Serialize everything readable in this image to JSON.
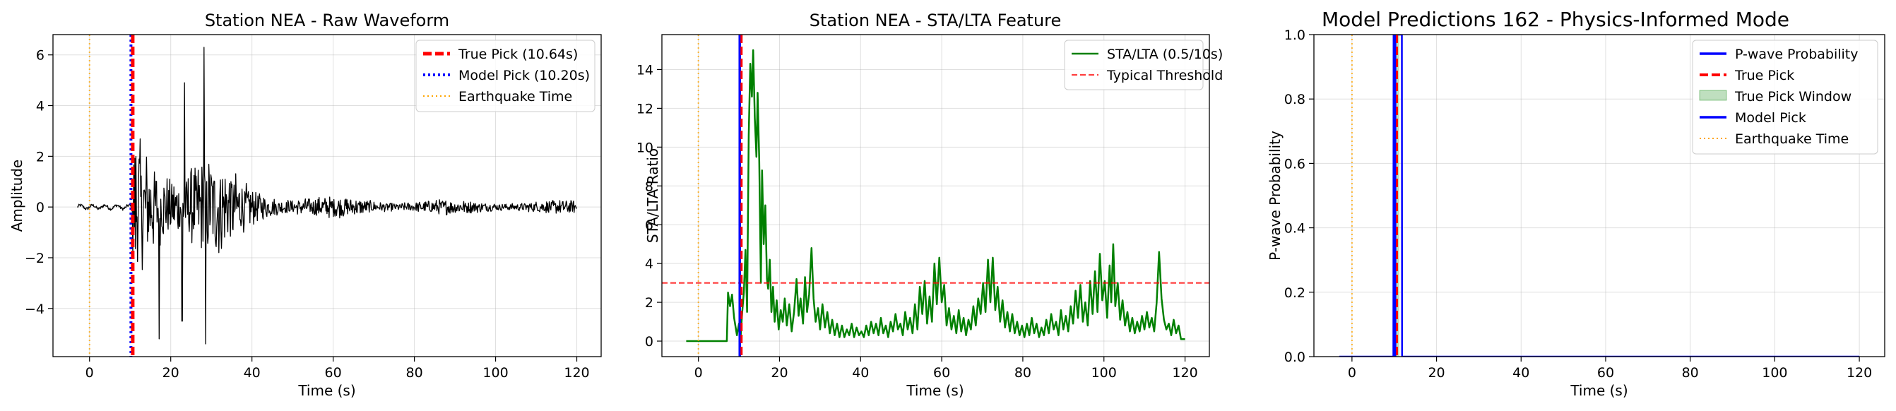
{
  "chart_data": [
    {
      "type": "line",
      "title": "Station NEA - Raw Waveform",
      "xlabel": "Time (s)",
      "ylabel": "Amplitude",
      "xlim": [
        -9,
        126
      ],
      "ylim": [
        -5.9,
        6.8
      ],
      "xticks": [
        0,
        20,
        40,
        60,
        80,
        100,
        120
      ],
      "yticks": [
        -4,
        -2,
        0,
        2,
        4,
        6
      ],
      "xtick_labels": [
        "0",
        "20",
        "40",
        "60",
        "80",
        "100",
        "120"
      ],
      "ytick_labels": [
        "−4",
        "−2",
        "0",
        "2",
        "4",
        "6"
      ],
      "grid": true,
      "legend_position": "top-right",
      "series": [
        {
          "name": "",
          "kind": "waveform",
          "color": "#000000",
          "x_start": -3,
          "x_end": 120,
          "onset": 10.6
        }
      ],
      "vlines": [
        {
          "name": "True Pick (10.64s)",
          "x": 10.64,
          "color": "#ff0000",
          "style": "dashed"
        },
        {
          "name": "Model Pick (10.20s)",
          "x": 10.2,
          "color": "#0000ff",
          "style": "dotted"
        },
        {
          "name": "Earthquake Time",
          "x": 0,
          "color": "#ffa500",
          "style": "dotted"
        }
      ],
      "legend": [
        "True Pick (10.64s)",
        "Model Pick (10.20s)",
        "Earthquake Time"
      ]
    },
    {
      "type": "line",
      "title": "Station NEA - STA/LTA Feature",
      "xlabel": "Time (s)",
      "ylabel": "STA/LTA Ratio",
      "xlim": [
        -9,
        126
      ],
      "ylim": [
        -0.8,
        15.8
      ],
      "xticks": [
        0,
        20,
        40,
        60,
        80,
        100,
        120
      ],
      "yticks": [
        0,
        2,
        4,
        6,
        8,
        10,
        12,
        14
      ],
      "xtick_labels": [
        "0",
        "20",
        "40",
        "60",
        "80",
        "100",
        "120"
      ],
      "ytick_labels": [
        "0",
        "2",
        "4",
        "6",
        "8",
        "10",
        "12",
        "14"
      ],
      "grid": true,
      "legend_position": "top-right",
      "series": [
        {
          "name": "STA/LTA (0.5/10s)",
          "color": "#008000",
          "points": [
            [
              -3,
              0
            ],
            [
              7,
              0
            ],
            [
              7.3,
              2.5
            ],
            [
              7.8,
              1.8
            ],
            [
              8.3,
              2.4
            ],
            [
              8.8,
              1.2
            ],
            [
              9.5,
              0.3
            ],
            [
              10,
              0.9
            ],
            [
              10.4,
              0.2
            ],
            [
              10.8,
              1.5
            ],
            [
              11.2,
              2.5
            ],
            [
              11.6,
              4.7
            ],
            [
              12,
              1.5
            ],
            [
              12.4,
              10.6
            ],
            [
              12.8,
              14.3
            ],
            [
              13.2,
              12.6
            ],
            [
              13.5,
              15.0
            ],
            [
              13.9,
              11.5
            ],
            [
              14.3,
              9.5
            ],
            [
              14.6,
              12.8
            ],
            [
              15,
              9.3
            ],
            [
              15.4,
              3.0
            ],
            [
              15.7,
              8.8
            ],
            [
              16.1,
              5.0
            ],
            [
              16.5,
              7.0
            ],
            [
              16.9,
              3.2
            ],
            [
              17.2,
              2.7
            ],
            [
              17.6,
              4.2
            ],
            [
              18,
              1.5
            ],
            [
              18.4,
              2.8
            ],
            [
              18.8,
              1.0
            ],
            [
              19.3,
              2.1
            ],
            [
              19.8,
              0.6
            ],
            [
              20.3,
              1.6
            ],
            [
              20.8,
              1.0
            ],
            [
              21.3,
              2.2
            ],
            [
              21.8,
              0.8
            ],
            [
              22.4,
              1.9
            ],
            [
              23,
              0.5
            ],
            [
              23.6,
              1.5
            ],
            [
              24.2,
              3.2
            ],
            [
              24.7,
              1.3
            ],
            [
              25.2,
              2.2
            ],
            [
              25.8,
              0.9
            ],
            [
              26.3,
              3.3
            ],
            [
              26.8,
              1.5
            ],
            [
              27.3,
              2.4
            ],
            [
              27.9,
              4.8
            ],
            [
              28.4,
              2.2
            ],
            [
              28.9,
              1.0
            ],
            [
              29.5,
              1.7
            ],
            [
              30,
              0.6
            ],
            [
              30.6,
              1.9
            ],
            [
              31.2,
              0.7
            ],
            [
              31.8,
              1.5
            ],
            [
              32.4,
              0.4
            ],
            [
              33,
              1.1
            ],
            [
              33.6,
              0.3
            ],
            [
              34.2,
              0.9
            ],
            [
              34.8,
              0.2
            ],
            [
              35.4,
              0.8
            ],
            [
              36,
              0.2
            ],
            [
              36.6,
              0.6
            ],
            [
              37.2,
              0.3
            ],
            [
              37.8,
              0.9
            ],
            [
              38.4,
              0.2
            ],
            [
              39,
              0.7
            ],
            [
              39.6,
              0.3
            ],
            [
              40.2,
              0.5
            ],
            [
              40.8,
              0.2
            ],
            [
              41.4,
              0.8
            ],
            [
              42,
              0.3
            ],
            [
              42.6,
              1.0
            ],
            [
              43.2,
              0.4
            ],
            [
              43.8,
              0.9
            ],
            [
              44.4,
              0.3
            ],
            [
              45,
              1.2
            ],
            [
              45.6,
              0.4
            ],
            [
              46.2,
              0.8
            ],
            [
              46.8,
              0.2
            ],
            [
              47.4,
              1.0
            ],
            [
              48,
              0.5
            ],
            [
              48.6,
              1.4
            ],
            [
              49.2,
              0.6
            ],
            [
              49.8,
              0.9
            ],
            [
              50.4,
              0.3
            ],
            [
              51,
              1.5
            ],
            [
              51.6,
              0.6
            ],
            [
              52.2,
              1.2
            ],
            [
              52.8,
              0.4
            ],
            [
              53.4,
              1.9
            ],
            [
              54,
              0.6
            ],
            [
              54.6,
              2.8
            ],
            [
              55.2,
              1.4
            ],
            [
              55.8,
              3.1
            ],
            [
              56.4,
              0.9
            ],
            [
              57,
              2.3
            ],
            [
              57.6,
              1.0
            ],
            [
              58.2,
              4.0
            ],
            [
              58.8,
              1.9
            ],
            [
              59.4,
              4.3
            ],
            [
              60,
              2.0
            ],
            [
              60.6,
              2.9
            ],
            [
              61.2,
              0.8
            ],
            [
              61.8,
              1.7
            ],
            [
              62.4,
              0.6
            ],
            [
              63,
              1.3
            ],
            [
              63.6,
              0.4
            ],
            [
              64.2,
              1.6
            ],
            [
              64.8,
              0.5
            ],
            [
              65.4,
              1.2
            ],
            [
              66,
              0.3
            ],
            [
              66.6,
              1.1
            ],
            [
              67.2,
              0.6
            ],
            [
              67.8,
              1.8
            ],
            [
              68.4,
              0.8
            ],
            [
              69,
              2.2
            ],
            [
              69.6,
              1.4
            ],
            [
              70.2,
              3.0
            ],
            [
              70.8,
              1.5
            ],
            [
              71.4,
              4.2
            ],
            [
              72,
              2.0
            ],
            [
              72.6,
              4.3
            ],
            [
              73.2,
              1.6
            ],
            [
              73.8,
              2.8
            ],
            [
              74.4,
              1.0
            ],
            [
              75,
              2.1
            ],
            [
              75.6,
              0.7
            ],
            [
              76.2,
              1.5
            ],
            [
              76.8,
              0.5
            ],
            [
              77.4,
              1.4
            ],
            [
              78,
              0.4
            ],
            [
              78.6,
              1.0
            ],
            [
              79.2,
              0.3
            ],
            [
              79.8,
              0.8
            ],
            [
              80.4,
              0.2
            ],
            [
              81,
              0.9
            ],
            [
              81.6,
              0.3
            ],
            [
              82.2,
              1.2
            ],
            [
              82.8,
              0.4
            ],
            [
              83.4,
              0.9
            ],
            [
              84,
              0.2
            ],
            [
              84.6,
              0.7
            ],
            [
              85.2,
              0.3
            ],
            [
              85.8,
              1.1
            ],
            [
              86.4,
              0.4
            ],
            [
              87,
              1.4
            ],
            [
              87.6,
              0.6
            ],
            [
              88.2,
              1.0
            ],
            [
              88.8,
              0.3
            ],
            [
              89.4,
              1.6
            ],
            [
              90,
              0.6
            ],
            [
              90.6,
              1.3
            ],
            [
              91.2,
              0.5
            ],
            [
              91.8,
              1.8
            ],
            [
              92.4,
              0.9
            ],
            [
              93,
              2.6
            ],
            [
              93.6,
              1.2
            ],
            [
              94.2,
              2.9
            ],
            [
              94.8,
              1.0
            ],
            [
              95.4,
              2.0
            ],
            [
              96,
              0.8
            ],
            [
              96.6,
              3.1
            ],
            [
              97.2,
              1.4
            ],
            [
              97.8,
              3.6
            ],
            [
              98.4,
              1.5
            ],
            [
              99,
              4.5
            ],
            [
              99.6,
              2.1
            ],
            [
              100.2,
              3.1
            ],
            [
              100.8,
              1.2
            ],
            [
              101.4,
              3.9
            ],
            [
              101.8,
              2.0
            ],
            [
              102.3,
              5.0
            ],
            [
              102.8,
              1.8
            ],
            [
              103.4,
              3.0
            ],
            [
              104,
              1.1
            ],
            [
              104.6,
              2.1
            ],
            [
              105.2,
              0.8
            ],
            [
              105.8,
              1.5
            ],
            [
              106.4,
              0.5
            ],
            [
              107,
              1.2
            ],
            [
              107.6,
              0.4
            ],
            [
              108.2,
              1.0
            ],
            [
              108.8,
              0.5
            ],
            [
              109.4,
              1.3
            ],
            [
              110,
              0.6
            ],
            [
              110.6,
              1.5
            ],
            [
              111.2,
              0.7
            ],
            [
              111.8,
              1.2
            ],
            [
              112.4,
              0.5
            ],
            [
              113,
              2.0
            ],
            [
              113.6,
              4.6
            ],
            [
              114.2,
              2.2
            ],
            [
              114.8,
              1.1
            ],
            [
              115.4,
              0.6
            ],
            [
              116,
              0.9
            ],
            [
              116.6,
              0.3
            ],
            [
              117.2,
              1.1
            ],
            [
              117.8,
              0.4
            ],
            [
              118.4,
              0.8
            ],
            [
              119,
              0.1
            ],
            [
              120,
              0.1
            ]
          ]
        }
      ],
      "hlines": [
        {
          "name": "Typical Threshold",
          "y": 3,
          "color": "#ff0000",
          "style": "dashed"
        }
      ],
      "vlines": [
        {
          "name": "",
          "x": 10.64,
          "color": "#ff0000",
          "style": "dashed"
        },
        {
          "name": "",
          "x": 10.2,
          "color": "#0000ff",
          "style": "solid"
        },
        {
          "name": "",
          "x": 0,
          "color": "#ffa500",
          "style": "dotted"
        }
      ],
      "legend": [
        "STA/LTA (0.5/10s)",
        "Typical Threshold"
      ]
    },
    {
      "type": "line",
      "title": "Model Predictions 162 - Physics-Informed Mode",
      "xlabel": "Time (s)",
      "ylabel": "P-wave Probability",
      "xlim": [
        -9,
        126
      ],
      "ylim": [
        0,
        1
      ],
      "xticks": [
        0,
        20,
        40,
        60,
        80,
        100,
        120
      ],
      "yticks": [
        0,
        0.2,
        0.4,
        0.6,
        0.8,
        1.0
      ],
      "xtick_labels": [
        "0",
        "20",
        "40",
        "60",
        "80",
        "100",
        "120"
      ],
      "ytick_labels": [
        "0.0",
        "0.2",
        "0.4",
        "0.6",
        "0.8",
        "1.0"
      ],
      "grid": true,
      "legend_position": "top-right",
      "series": [
        {
          "name": "P-wave Probability",
          "color": "#0000ff",
          "points": [
            [
              -3,
              0
            ],
            [
              9.8,
              0
            ],
            [
              9.85,
              1
            ],
            [
              11.8,
              1
            ],
            [
              11.85,
              0
            ],
            [
              120,
              0
            ]
          ]
        }
      ],
      "spans": [
        {
          "name": "True Pick Window",
          "x0": 10.1,
          "x1": 11.2,
          "color": "#008000",
          "alpha": 0.25
        }
      ],
      "vlines": [
        {
          "name": "True Pick",
          "x": 10.64,
          "color": "#ff0000",
          "style": "dashed"
        },
        {
          "name": "Model Pick",
          "x": 10.2,
          "color": "#0000ff",
          "style": "solid"
        },
        {
          "name": "Earthquake Time",
          "x": 0,
          "color": "#ffa500",
          "style": "dotted"
        }
      ],
      "legend": [
        "P-wave Probability",
        "True Pick",
        "True Pick Window",
        "Model Pick",
        "Earthquake Time"
      ]
    }
  ]
}
